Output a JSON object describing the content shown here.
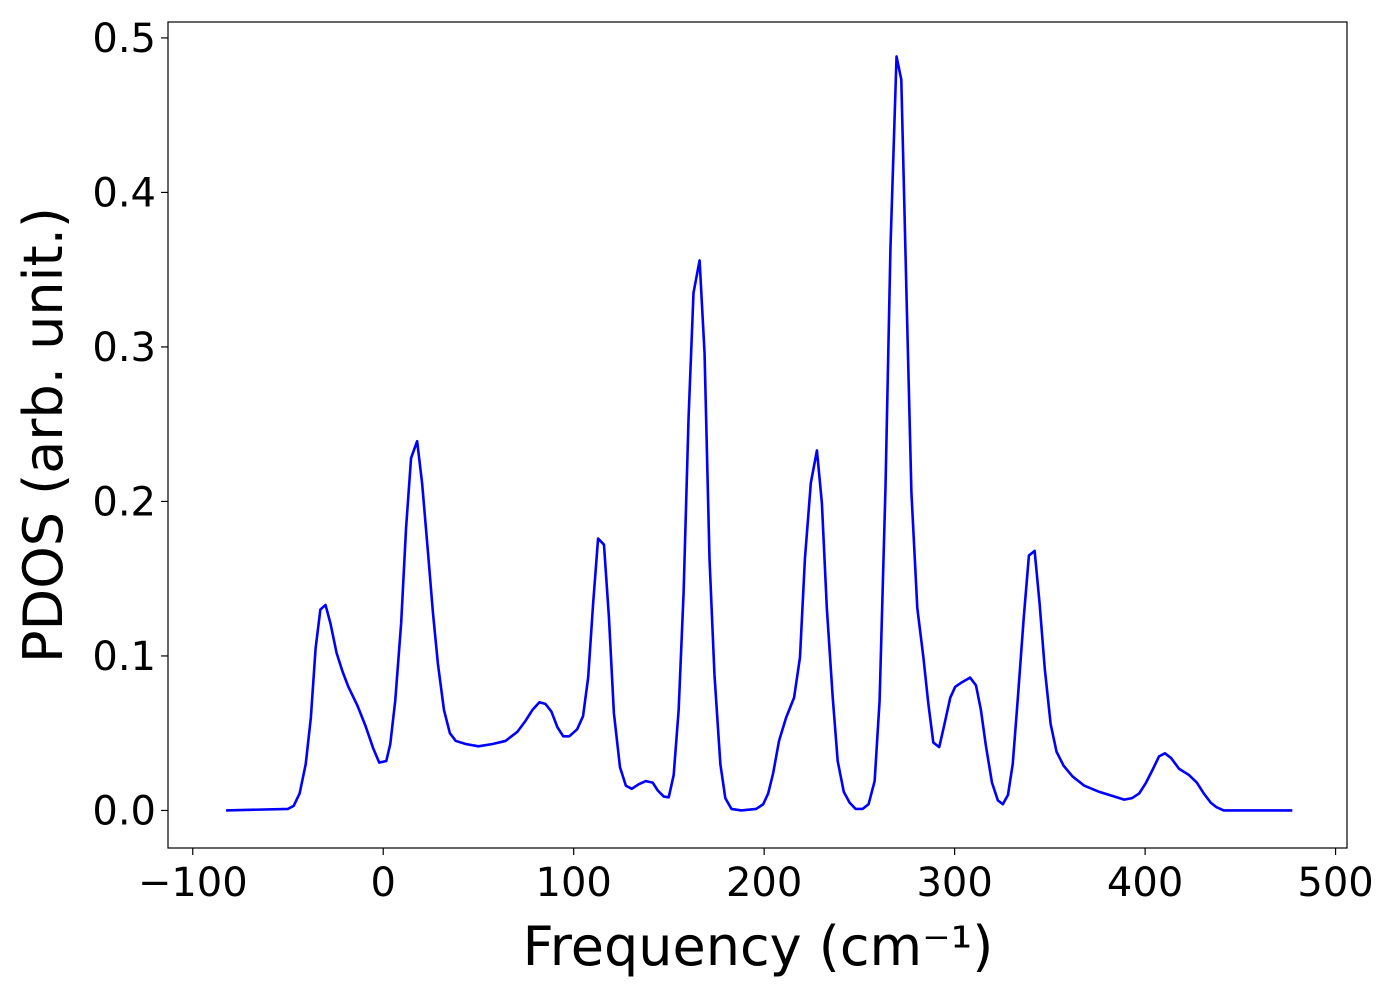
{
  "chart_data": {
    "type": "line",
    "xlabel": "Frequency (cm⁻¹)",
    "ylabel": "PDOS (arb. unit.)",
    "color": "#0000ff",
    "x": [
      -82.5,
      -50,
      -47,
      -43.9,
      -40.7,
      -38,
      -35.5,
      -33,
      -30.3,
      -27.7,
      -24.5,
      -21.4,
      -18.3,
      -13.6,
      -9.4,
      -5.2,
      -2.1,
      1.6,
      3.7,
      6.3,
      9.4,
      12,
      14.6,
      17.8,
      20.4,
      23.5,
      26.1,
      28.7,
      31.9,
      35,
      38.1,
      43.3,
      50,
      57.4,
      64.2,
      70.5,
      74.7,
      78.3,
      82,
      85.1,
      88.3,
      91.4,
      94.5,
      97.7,
      101.8,
      104.9,
      107.6,
      110.2,
      112.8,
      115.9,
      118.5,
      121.1,
      124.3,
      127.4,
      130.5,
      134.2,
      137.9,
      141.5,
      144.1,
      147.3,
      149.9,
      152.5,
      155.1,
      157.7,
      160.3,
      162.9,
      166.1,
      168.7,
      171.3,
      173.9,
      177,
      179.6,
      182.8,
      188,
      195.8,
      199.5,
      202.1,
      204.7,
      207.8,
      211.5,
      215.7,
      218.8,
      221.4,
      224.5,
      227.7,
      230.3,
      232.9,
      236,
      238.6,
      241.8,
      244.9,
      248,
      251.7,
      254.8,
      258,
      260.6,
      263.7,
      266.3,
      269.5,
      272,
      274.7,
      277.3,
      280.4,
      283.6,
      286.2,
      288.8,
      291.9,
      294.5,
      297.7,
      300.3,
      303.9,
      308.1,
      311.2,
      313.8,
      316.4,
      319.6,
      322.7,
      325.3,
      328,
      330.5,
      333.2,
      336.3,
      339,
      342,
      344.6,
      347.3,
      350.4,
      353.5,
      357.2,
      361.9,
      368.1,
      376,
      383.8,
      389,
      393.2,
      396.9,
      400.5,
      404.2,
      407.3,
      410.4,
      413.6,
      417.8,
      423,
      427.2,
      430.8,
      434.5,
      437.6,
      441.3,
      477.3
    ],
    "values": [
      0,
      0.001,
      0.003,
      0.011,
      0.03,
      0.06,
      0.105,
      0.13,
      0.133,
      0.121,
      0.102,
      0.09,
      0.08,
      0.068,
      0.055,
      0.04,
      0.031,
      0.032,
      0.043,
      0.071,
      0.121,
      0.183,
      0.228,
      0.239,
      0.212,
      0.167,
      0.128,
      0.095,
      0.065,
      0.05,
      0.045,
      0.043,
      0.0415,
      0.043,
      0.045,
      0.051,
      0.058,
      0.065,
      0.07,
      0.069,
      0.064,
      0.054,
      0.048,
      0.048,
      0.0525,
      0.061,
      0.086,
      0.134,
      0.176,
      0.172,
      0.125,
      0.063,
      0.028,
      0.016,
      0.014,
      0.017,
      0.019,
      0.018,
      0.013,
      0.009,
      0.0085,
      0.023,
      0.065,
      0.141,
      0.254,
      0.335,
      0.356,
      0.296,
      0.163,
      0.088,
      0.03,
      0.008,
      0.001,
      0,
      0.001,
      0.004,
      0.011,
      0.024,
      0.045,
      0.06,
      0.073,
      0.099,
      0.163,
      0.212,
      0.233,
      0.199,
      0.131,
      0.073,
      0.032,
      0.012,
      0.005,
      0.001,
      0.001,
      0.004,
      0.019,
      0.071,
      0.209,
      0.364,
      0.488,
      0.473,
      0.335,
      0.206,
      0.131,
      0.099,
      0.069,
      0.044,
      0.041,
      0.055,
      0.073,
      0.08,
      0.083,
      0.086,
      0.081,
      0.065,
      0.042,
      0.018,
      0.0065,
      0.004,
      0.01,
      0.03,
      0.073,
      0.125,
      0.165,
      0.168,
      0.134,
      0.092,
      0.056,
      0.038,
      0.029,
      0.022,
      0.016,
      0.012,
      0.009,
      0.007,
      0.008,
      0.011,
      0.018,
      0.027,
      0.035,
      0.037,
      0.034,
      0.027,
      0.023,
      0.018,
      0.011,
      0.005,
      0.002,
      0,
      0
    ],
    "xlim": [
      -113,
      506
    ],
    "xticks": [
      {
        "value": -100,
        "label": "−100"
      },
      0,
      100,
      200,
      300,
      400,
      500
    ],
    "ylim": [
      -0.0243,
      0.5103
    ],
    "yticks": [
      {
        "value": 0,
        "label": "0.0"
      },
      0.1,
      0.2,
      0.3,
      0.4,
      0.5
    ]
  }
}
